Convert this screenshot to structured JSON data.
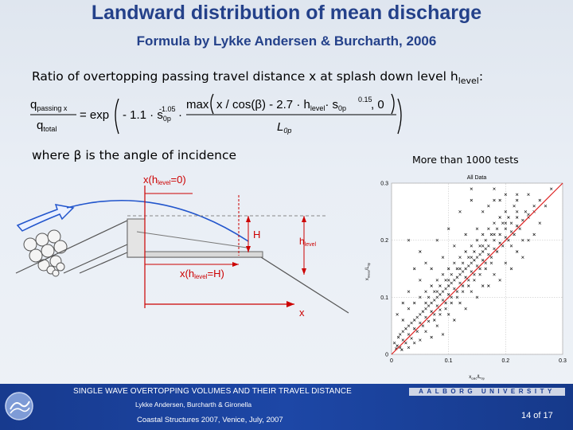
{
  "slide": {
    "title": "Landward distribution of mean discharge",
    "subtitle": "Formula by Lykke Andersen & Burcharth, 2006",
    "ratio_text": "Ratio of overtopping passing travel distance x at splash down level h",
    "ratio_sub": "level",
    "ratio_end": ":",
    "formula": {
      "lhs_num": "q",
      "lhs_num_sub": "passing x",
      "lhs_den": "q",
      "lhs_den_sub": "total",
      "eq": "= exp",
      "coef": "- 1.1 · s",
      "coef_sub": "0p",
      "coef_sup": "-1.05",
      "dot": "·",
      "max_text": "max",
      "num_expr": "x / cos(β) - 2.7 · h",
      "num_sub": "level",
      "num_tail": "· s",
      "num_tail_sub": "0p",
      "num_tail_sup": "0.15",
      "comma_zero": ", 0",
      "den": "L",
      "den_sub": "0p"
    },
    "where_text": "where β is the angle of incidence",
    "more_tests": "More than 1000 tests",
    "diagram": {
      "x_hlevel0": "x(h",
      "x_hlevel0_sub": "level",
      "x_hlevel0_end": "=0)",
      "H": "H",
      "hlevel": "h",
      "hlevel_sub": "level",
      "x_hlevelH": "x(h",
      "x_hlevelH_sub": "level",
      "x_hlevelH_end": "=H)",
      "x_axis": "x",
      "accent": "#cc0000",
      "wave": "#2255cc"
    },
    "footer": {
      "line1": "SINGLE WAVE OVERTOPPING VOLUMES AND THEIR TRAVEL DISTANCE",
      "line2": "Lykke Andersen, Burcharth & Gironella",
      "line3": "Coastal Structures 2007, Venice, July, 2007",
      "university": "AALBORG UNIVERSITY",
      "page": "14 of 17"
    }
  },
  "chart_data": {
    "type": "scatter",
    "title": "All Data",
    "xlabel": "x",
    "xlabel_sub": "calc",
    "xlabel_tail": "/L",
    "xlabel_tail_sub": "0p",
    "ylabel": "x",
    "ylabel_sub": "meas",
    "ylabel_tail": "/L",
    "ylabel_tail_sub": "0p",
    "xlim": [
      0,
      0.3
    ],
    "ylim": [
      0,
      0.3
    ],
    "xticks": [
      "0",
      "0.1",
      "0.2",
      "0.3"
    ],
    "yticks": [
      "0",
      "0.1",
      "0.2",
      "0.3"
    ],
    "line": {
      "x": [
        0,
        0.3
      ],
      "y": [
        0,
        0.3
      ],
      "color": "#dd2222"
    },
    "marker_color": "#000000",
    "series": [
      {
        "points": [
          [
            0.005,
            0.02
          ],
          [
            0.01,
            0.015
          ],
          [
            0.012,
            0.03
          ],
          [
            0.015,
            0.012
          ],
          [
            0.02,
            0.025
          ],
          [
            0.02,
            0.04
          ],
          [
            0.025,
            0.02
          ],
          [
            0.03,
            0.035
          ],
          [
            0.03,
            0.05
          ],
          [
            0.035,
            0.028
          ],
          [
            0.04,
            0.045
          ],
          [
            0.04,
            0.06
          ],
          [
            0.045,
            0.04
          ],
          [
            0.05,
            0.055
          ],
          [
            0.05,
            0.07
          ],
          [
            0.055,
            0.05
          ],
          [
            0.06,
            0.065
          ],
          [
            0.06,
            0.08
          ],
          [
            0.065,
            0.058
          ],
          [
            0.07,
            0.075
          ],
          [
            0.07,
            0.09
          ],
          [
            0.075,
            0.07
          ],
          [
            0.08,
            0.085
          ],
          [
            0.08,
            0.1
          ],
          [
            0.085,
            0.078
          ],
          [
            0.09,
            0.095
          ],
          [
            0.09,
            0.11
          ],
          [
            0.095,
            0.09
          ],
          [
            0.1,
            0.105
          ],
          [
            0.1,
            0.12
          ],
          [
            0.105,
            0.1
          ],
          [
            0.11,
            0.115
          ],
          [
            0.11,
            0.13
          ],
          [
            0.115,
            0.11
          ],
          [
            0.12,
            0.125
          ],
          [
            0.12,
            0.14
          ],
          [
            0.125,
            0.12
          ],
          [
            0.13,
            0.135
          ],
          [
            0.13,
            0.15
          ],
          [
            0.135,
            0.13
          ],
          [
            0.14,
            0.145
          ],
          [
            0.14,
            0.16
          ],
          [
            0.145,
            0.14
          ],
          [
            0.15,
            0.155
          ],
          [
            0.15,
            0.17
          ],
          [
            0.155,
            0.15
          ],
          [
            0.16,
            0.165
          ],
          [
            0.16,
            0.18
          ],
          [
            0.165,
            0.16
          ],
          [
            0.17,
            0.175
          ],
          [
            0.17,
            0.19
          ],
          [
            0.175,
            0.17
          ],
          [
            0.18,
            0.185
          ],
          [
            0.18,
            0.2
          ],
          [
            0.185,
            0.18
          ],
          [
            0.19,
            0.195
          ],
          [
            0.19,
            0.21
          ],
          [
            0.195,
            0.19
          ],
          [
            0.2,
            0.205
          ],
          [
            0.2,
            0.22
          ],
          [
            0.205,
            0.2
          ],
          [
            0.21,
            0.215
          ],
          [
            0.21,
            0.23
          ],
          [
            0.215,
            0.21
          ],
          [
            0.22,
            0.225
          ],
          [
            0.22,
            0.24
          ],
          [
            0.225,
            0.22
          ],
          [
            0.23,
            0.235
          ],
          [
            0.235,
            0.25
          ],
          [
            0.24,
            0.245
          ],
          [
            0.25,
            0.26
          ],
          [
            0.26,
            0.27
          ],
          [
            0.02,
            0.06
          ],
          [
            0.03,
            0.08
          ],
          [
            0.04,
            0.09
          ],
          [
            0.05,
            0.1
          ],
          [
            0.06,
            0.11
          ],
          [
            0.07,
            0.12
          ],
          [
            0.08,
            0.13
          ],
          [
            0.09,
            0.14
          ],
          [
            0.1,
            0.15
          ],
          [
            0.11,
            0.16
          ],
          [
            0.12,
            0.17
          ],
          [
            0.13,
            0.18
          ],
          [
            0.14,
            0.19
          ],
          [
            0.15,
            0.2
          ],
          [
            0.16,
            0.21
          ],
          [
            0.17,
            0.22
          ],
          [
            0.18,
            0.23
          ],
          [
            0.19,
            0.24
          ],
          [
            0.2,
            0.25
          ],
          [
            0.04,
            0.02
          ],
          [
            0.06,
            0.04
          ],
          [
            0.08,
            0.05
          ],
          [
            0.1,
            0.07
          ],
          [
            0.12,
            0.09
          ],
          [
            0.14,
            0.11
          ],
          [
            0.16,
            0.12
          ],
          [
            0.18,
            0.14
          ],
          [
            0.2,
            0.16
          ],
          [
            0.22,
            0.18
          ],
          [
            0.24,
            0.2
          ],
          [
            0.06,
            0.09
          ],
          [
            0.08,
            0.11
          ],
          [
            0.1,
            0.13
          ],
          [
            0.12,
            0.15
          ],
          [
            0.14,
            0.17
          ],
          [
            0.16,
            0.19
          ],
          [
            0.18,
            0.21
          ],
          [
            0.2,
            0.23
          ],
          [
            0.22,
            0.25
          ],
          [
            0.065,
            0.085
          ],
          [
            0.075,
            0.095
          ],
          [
            0.085,
            0.105
          ],
          [
            0.095,
            0.115
          ],
          [
            0.105,
            0.125
          ],
          [
            0.115,
            0.135
          ],
          [
            0.125,
            0.145
          ],
          [
            0.135,
            0.155
          ],
          [
            0.145,
            0.165
          ],
          [
            0.155,
            0.175
          ],
          [
            0.165,
            0.185
          ],
          [
            0.075,
            0.06
          ],
          [
            0.085,
            0.07
          ],
          [
            0.095,
            0.08
          ],
          [
            0.105,
            0.09
          ],
          [
            0.115,
            0.1
          ],
          [
            0.125,
            0.11
          ],
          [
            0.135,
            0.12
          ],
          [
            0.145,
            0.13
          ],
          [
            0.155,
            0.14
          ],
          [
            0.165,
            0.15
          ],
          [
            0.175,
            0.16
          ],
          [
            0.03,
            0.2
          ],
          [
            0.05,
            0.18
          ],
          [
            0.08,
            0.2
          ],
          [
            0.1,
            0.22
          ],
          [
            0.12,
            0.25
          ],
          [
            0.14,
            0.27
          ],
          [
            0.16,
            0.25
          ],
          [
            0.18,
            0.27
          ],
          [
            0.2,
            0.28
          ],
          [
            0.22,
            0.27
          ],
          [
            0.24,
            0.28
          ],
          [
            0.25,
            0.25
          ],
          [
            0.26,
            0.23
          ],
          [
            0.23,
            0.2
          ],
          [
            0.21,
            0.19
          ],
          [
            0.22,
            0.28
          ],
          [
            0.24,
            0.24
          ],
          [
            0.19,
            0.27
          ],
          [
            0.17,
            0.26
          ],
          [
            0.15,
            0.22
          ],
          [
            0.13,
            0.21
          ],
          [
            0.11,
            0.19
          ],
          [
            0.09,
            0.17
          ],
          [
            0.07,
            0.15
          ],
          [
            0.05,
            0.13
          ],
          [
            0.03,
            0.11
          ],
          [
            0.02,
            0.09
          ],
          [
            0.01,
            0.07
          ],
          [
            0.28,
            0.29
          ],
          [
            0.27,
            0.26
          ],
          [
            0.25,
            0.21
          ],
          [
            0.23,
            0.17
          ],
          [
            0.21,
            0.15
          ],
          [
            0.19,
            0.13
          ],
          [
            0.17,
            0.12
          ],
          [
            0.15,
            0.1
          ],
          [
            0.13,
            0.08
          ],
          [
            0.11,
            0.06
          ],
          [
            0.09,
            0.035
          ],
          [
            0.07,
            0.03
          ],
          [
            0.05,
            0.025
          ],
          [
            0.03,
            0.012
          ],
          [
            0.018,
            0.008
          ],
          [
            0.008,
            0.01
          ],
          [
            0.015,
            0.035
          ],
          [
            0.025,
            0.045
          ],
          [
            0.035,
            0.055
          ],
          [
            0.045,
            0.065
          ],
          [
            0.055,
            0.075
          ],
          [
            0.065,
            0.1
          ],
          [
            0.075,
            0.11
          ],
          [
            0.085,
            0.12
          ],
          [
            0.095,
            0.13
          ],
          [
            0.105,
            0.14
          ],
          [
            0.115,
            0.15
          ],
          [
            0.125,
            0.16
          ],
          [
            0.135,
            0.17
          ],
          [
            0.145,
            0.18
          ],
          [
            0.155,
            0.19
          ],
          [
            0.165,
            0.2
          ],
          [
            0.175,
            0.21
          ],
          [
            0.185,
            0.22
          ],
          [
            0.195,
            0.23
          ],
          [
            0.205,
            0.24
          ],
          [
            0.215,
            0.26
          ],
          [
            0.06,
            0.16
          ],
          [
            0.04,
            0.15
          ],
          [
            0.18,
            0.29
          ],
          [
            0.14,
            0.29
          ]
        ]
      }
    ]
  }
}
